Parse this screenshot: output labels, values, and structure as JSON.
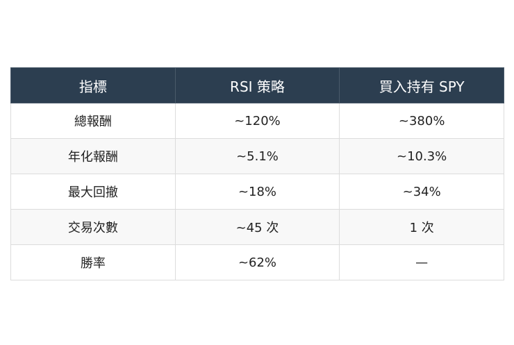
{
  "table": {
    "header": [
      "指標",
      "RSI 策略",
      "買入持有 SPY"
    ],
    "rows": [
      [
        "總報酬",
        "~120%",
        "~380%"
      ],
      [
        "年化報酬",
        "~5.1%",
        "~10.3%"
      ],
      [
        "最大回撤",
        "~18%",
        "~34%"
      ],
      [
        "交易次數",
        "~45 次",
        "1 次"
      ],
      [
        "勝率",
        "~62%",
        "—"
      ]
    ]
  }
}
